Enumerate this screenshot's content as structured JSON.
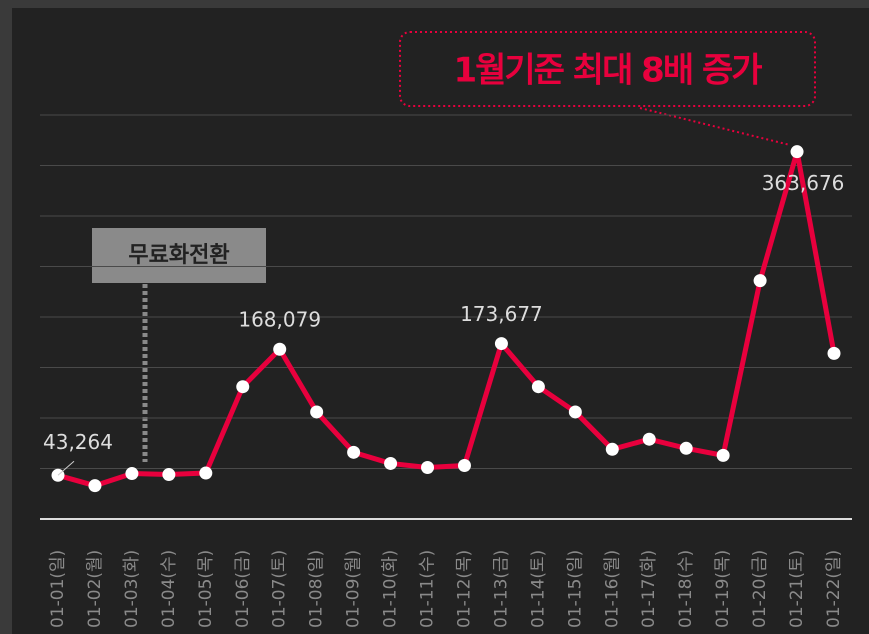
{
  "chart_data": {
    "type": "line",
    "categories": [
      "01-01(일)",
      "01-02(월)",
      "01-03(화)",
      "01-04(수)",
      "01-05(목)",
      "01-06(금)",
      "01-07(토)",
      "01-08(일)",
      "01-09(월)",
      "01-10(화)",
      "01-11(수)",
      "01-12(목)",
      "01-13(금)",
      "01-14(토)",
      "01-15(일)",
      "01-16(월)",
      "01-17(화)",
      "01-18(수)",
      "01-19(목)",
      "01-20(금)",
      "01-21(토)",
      "01-22(일)"
    ],
    "values": [
      43264,
      33000,
      45000,
      44000,
      45500,
      131000,
      168079,
      106000,
      66000,
      55000,
      51000,
      53000,
      173677,
      131000,
      106000,
      69000,
      79000,
      70000,
      63000,
      236000,
      363676,
      164000
    ],
    "value_labels": [
      "43,264",
      null,
      null,
      null,
      null,
      null,
      "168,079",
      null,
      null,
      null,
      null,
      null,
      "173,677",
      null,
      null,
      null,
      null,
      null,
      null,
      null,
      "363,676",
      null
    ],
    "color": "#e8003d",
    "ylim": [
      0,
      400000
    ],
    "yticks": [
      0,
      50000,
      100000,
      150000,
      200000,
      250000,
      300000,
      350000,
      400000
    ],
    "grid": true,
    "callout": "1월기준 최대 8배 증가",
    "event_label": "무료화전환"
  }
}
